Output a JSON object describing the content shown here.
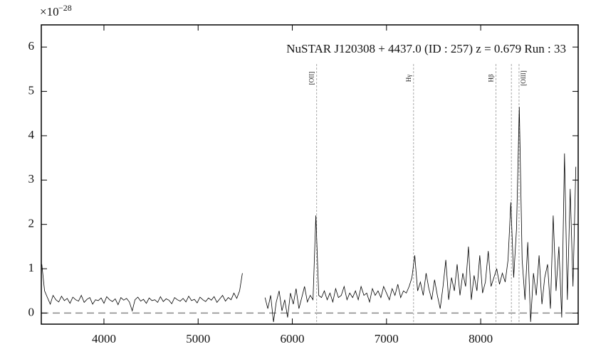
{
  "chart_data": {
    "type": "line",
    "title": "NuSTAR J120308 + 4437.0 (ID : 257)   z = 0.679   Run : 33",
    "y_exponent_base": "×10",
    "y_exponent": "−28",
    "xlim": [
      3335,
      9035
    ],
    "ylim": [
      -0.25,
      6.5
    ],
    "xticks": [
      4000,
      5000,
      6000,
      7000,
      8000
    ],
    "yticks": [
      0,
      1,
      2,
      3,
      4,
      5,
      6
    ],
    "color": "#000000",
    "reference_line": 0,
    "lines": [
      {
        "label": "[OII]",
        "x": [
          6258
        ]
      },
      {
        "label": "Hγ",
        "x": [
          7287
        ]
      },
      {
        "label": "Hβ",
        "x": [
          8162
        ]
      },
      {
        "label": "[OIII]",
        "x": [
          8326,
          8407
        ]
      }
    ],
    "x": [
      3340,
      3370,
      3400,
      3430,
      3460,
      3490,
      3520,
      3550,
      3580,
      3610,
      3640,
      3670,
      3700,
      3730,
      3760,
      3790,
      3820,
      3850,
      3880,
      3910,
      3940,
      3970,
      4000,
      4030,
      4060,
      4090,
      4120,
      4150,
      4180,
      4210,
      4240,
      4270,
      4300,
      4330,
      4360,
      4390,
      4420,
      4450,
      4480,
      4510,
      4540,
      4570,
      4600,
      4630,
      4660,
      4690,
      4720,
      4750,
      4780,
      4810,
      4840,
      4870,
      4900,
      4930,
      4960,
      4990,
      5020,
      5050,
      5080,
      5110,
      5140,
      5170,
      5200,
      5230,
      5260,
      5290,
      5320,
      5350,
      5380,
      5410,
      5440,
      5470,
      5500,
      5530,
      5560,
      5590,
      5620,
      5650,
      5680,
      5710,
      5740,
      5770,
      5800,
      5830,
      5860,
      5890,
      5920,
      5950,
      5980,
      6010,
      6040,
      6070,
      6100,
      6130,
      6160,
      6190,
      6220,
      6250,
      6280,
      6310,
      6340,
      6370,
      6400,
      6430,
      6460,
      6490,
      6520,
      6550,
      6580,
      6610,
      6640,
      6670,
      6700,
      6730,
      6760,
      6790,
      6820,
      6850,
      6880,
      6910,
      6940,
      6970,
      7000,
      7030,
      7060,
      7090,
      7120,
      7150,
      7180,
      7210,
      7240,
      7270,
      7300,
      7330,
      7360,
      7390,
      7420,
      7450,
      7480,
      7510,
      7540,
      7570,
      7600,
      7630,
      7660,
      7690,
      7720,
      7750,
      7780,
      7810,
      7840,
      7870,
      7900,
      7930,
      7960,
      7990,
      8020,
      8050,
      8080,
      8110,
      8140,
      8170,
      8200,
      8230,
      8260,
      8290,
      8320,
      8350,
      8380,
      8410,
      8440,
      8470,
      8500,
      8530,
      8560,
      8590,
      8620,
      8650,
      8680,
      8710,
      8740,
      8770,
      8800,
      8830,
      8860,
      8890,
      8920,
      8950,
      8980,
      9010
    ],
    "values": [
      1.1,
      0.5,
      0.35,
      0.2,
      0.4,
      0.3,
      0.25,
      0.38,
      0.28,
      0.33,
      0.22,
      0.36,
      0.3,
      0.27,
      0.4,
      0.24,
      0.31,
      0.35,
      0.2,
      0.3,
      0.28,
      0.34,
      0.22,
      0.37,
      0.3,
      0.26,
      0.32,
      0.19,
      0.35,
      0.29,
      0.33,
      0.25,
      0.05,
      0.3,
      0.36,
      0.27,
      0.31,
      0.22,
      0.34,
      0.28,
      0.3,
      0.24,
      0.37,
      0.26,
      0.32,
      0.29,
      0.21,
      0.35,
      0.3,
      0.27,
      0.33,
      0.25,
      0.38,
      0.28,
      0.31,
      0.23,
      0.36,
      0.3,
      0.26,
      0.34,
      0.29,
      0.37,
      0.24,
      0.32,
      0.4,
      0.27,
      0.35,
      0.3,
      0.45,
      0.33,
      0.5,
      0.9,
      null,
      null,
      null,
      null,
      null,
      null,
      null,
      0.35,
      0.1,
      0.4,
      -0.2,
      0.25,
      0.5,
      0.05,
      0.3,
      -0.1,
      0.45,
      0.2,
      0.55,
      0.1,
      0.35,
      0.6,
      0.25,
      0.4,
      0.3,
      2.2,
      0.4,
      0.35,
      0.5,
      0.3,
      0.45,
      0.25,
      0.55,
      0.35,
      0.4,
      0.6,
      0.3,
      0.45,
      0.35,
      0.5,
      0.3,
      0.6,
      0.4,
      0.45,
      0.25,
      0.55,
      0.4,
      0.5,
      0.35,
      0.6,
      0.45,
      0.3,
      0.55,
      0.4,
      0.65,
      0.35,
      0.5,
      0.45,
      0.6,
      0.8,
      1.3,
      0.5,
      0.7,
      0.4,
      0.9,
      0.55,
      0.3,
      0.75,
      0.4,
      0.1,
      0.6,
      1.2,
      0.3,
      0.8,
      0.5,
      1.1,
      0.4,
      0.9,
      0.6,
      1.5,
      0.3,
      0.85,
      0.5,
      1.3,
      0.45,
      0.7,
      1.4,
      0.6,
      0.8,
      1.0,
      0.65,
      0.9,
      0.7,
      1.2,
      2.5,
      0.8,
      1.9,
      4.65,
      1.2,
      0.3,
      1.6,
      -0.2,
      0.9,
      0.4,
      1.3,
      0.2,
      0.8,
      1.1,
      0.1,
      2.2,
      0.5,
      1.5,
      -0.1,
      3.6,
      0.3,
      2.8,
      0.6,
      3.3
    ]
  }
}
